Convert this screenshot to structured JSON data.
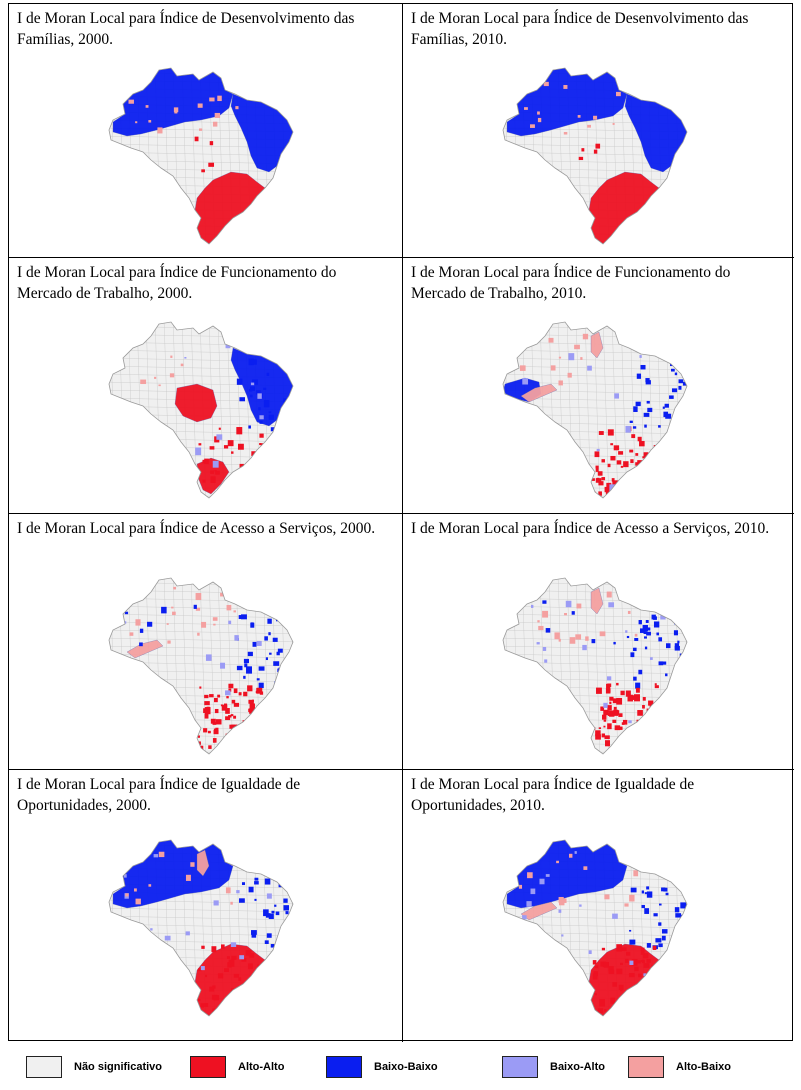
{
  "panels": [
    {
      "caption": " I de Moran Local para Índice de Desenvolvimento das Famílias, 2000.",
      "pattern": "dev2000"
    },
    {
      "caption": "I de Moran Local para Índice de Desenvolvimento das Famílias, 2010.",
      "pattern": "dev2010"
    },
    {
      "caption": "I de Moran Local para Índice de Funcionamento do Mercado de Trabalho, 2000.",
      "pattern": "mkt2000"
    },
    {
      "caption": "I de Moran Local para Índice de Funcionamento do Mercado de Trabalho, 2010.",
      "pattern": "mkt2010"
    },
    {
      "caption": "I de Moran Local para Índice de Acesso a Serviços, 2000.",
      "pattern": "srv2000"
    },
    {
      "caption": "I de Moran Local para Índice de Acesso a Serviços, 2010.",
      "pattern": "srv2010"
    },
    {
      "caption": "I de Moran Local para Índice de Igualdade de Oportunidades, 2000.",
      "pattern": "opp2000"
    },
    {
      "caption": "I de Moran Local para Índice de Igualdade de Oportunidades, 2010.",
      "pattern": "opp2010"
    }
  ],
  "legend": [
    {
      "label": "Não significativo",
      "color": "#f0f0f0"
    },
    {
      "label": "Alto-Alto",
      "color": "#ee1122"
    },
    {
      "label": "Baixo-Baixo",
      "color": "#0a1ef0"
    },
    {
      "label": "Baixo-Alto",
      "color": "#9b9bf5"
    },
    {
      "label": "Alto-Baixo",
      "color": "#f4a0a0"
    }
  ],
  "colors": {
    "border": "#9a9a9a"
  }
}
